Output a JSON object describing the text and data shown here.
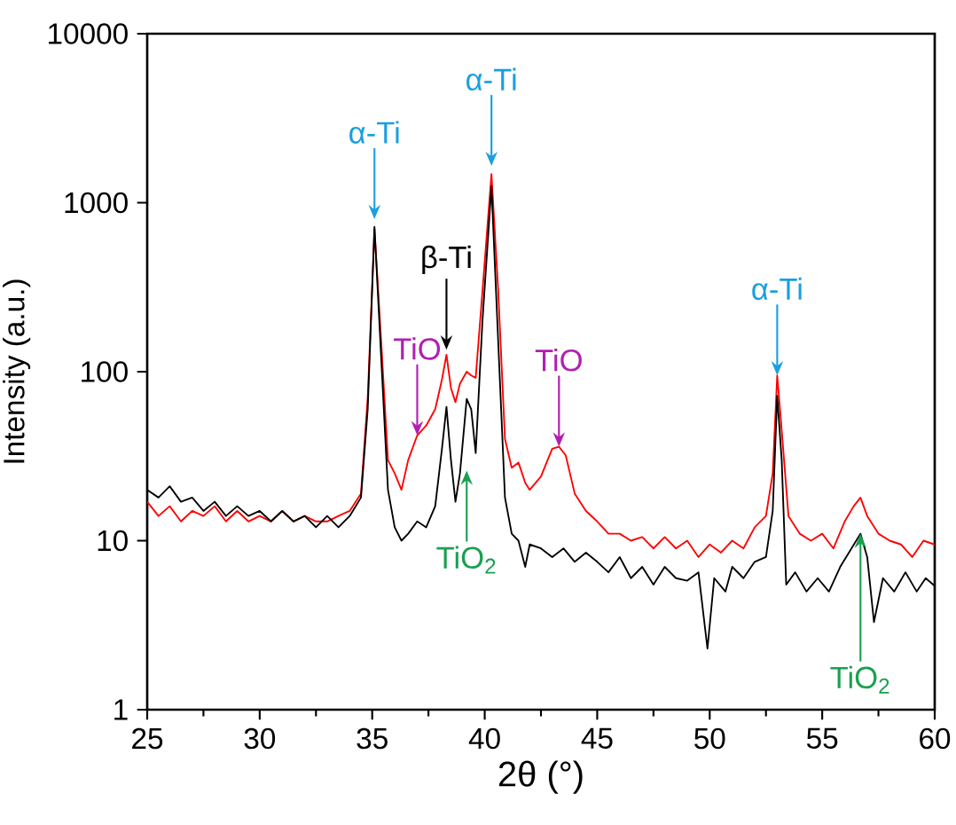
{
  "chart_data": {
    "type": "line",
    "xlabel": "2θ (°)",
    "ylabel": "Intensity (a.u.)",
    "log": "y",
    "xlim": [
      25,
      60
    ],
    "ylim": [
      1,
      10000
    ],
    "xticks": [
      25,
      30,
      35,
      40,
      45,
      50,
      55,
      60
    ],
    "yticks": [
      1,
      10,
      100,
      1000,
      10000
    ],
    "series": [
      {
        "color": "#ff0000",
        "x": [
          25,
          25.5,
          26,
          26.5,
          27,
          27.5,
          28,
          28.5,
          29,
          29.5,
          30,
          30.5,
          31,
          31.5,
          32,
          32.5,
          33,
          33.5,
          34,
          34.5,
          34.8,
          35.1,
          35.4,
          35.7,
          36,
          36.3,
          36.6,
          37,
          37.4,
          37.8,
          38.1,
          38.3,
          38.5,
          38.7,
          38.9,
          39.2,
          39.4,
          39.6,
          39.9,
          40.3,
          40.6,
          40.9,
          41.2,
          41.5,
          41.8,
          42,
          42.5,
          43,
          43.3,
          43.6,
          44,
          44.5,
          45,
          45.5,
          46,
          46.5,
          47,
          47.5,
          48,
          48.5,
          49,
          49.5,
          50,
          50.5,
          51,
          51.5,
          52,
          52.5,
          52.8,
          53.0,
          53.2,
          53.5,
          54,
          54.5,
          55,
          55.5,
          56,
          56.4,
          56.7,
          57,
          57.5,
          58,
          58.5,
          59,
          59.5,
          60
        ],
        "values": [
          17,
          14,
          16,
          13,
          15,
          14,
          16,
          13,
          15,
          13,
          14,
          13,
          15,
          13,
          14,
          13,
          13,
          14,
          15,
          19,
          70,
          700,
          150,
          30,
          25,
          20,
          30,
          42,
          48,
          60,
          90,
          126,
          80,
          66,
          85,
          100,
          95,
          92,
          300,
          1480,
          300,
          40,
          27,
          29,
          22,
          20,
          24,
          35,
          36,
          32,
          19,
          15,
          13,
          11,
          11,
          10,
          10.5,
          9,
          10.5,
          9,
          10,
          8,
          9.5,
          8.5,
          10,
          9,
          12,
          14,
          25,
          95,
          45,
          14,
          11,
          10,
          11,
          9,
          13,
          16,
          18,
          14,
          11,
          10,
          9.5,
          8,
          10,
          9.5
        ]
      },
      {
        "color": "#000000",
        "x": [
          25,
          25.5,
          26,
          26.5,
          27,
          27.5,
          28,
          28.5,
          29,
          29.5,
          30,
          30.5,
          31,
          31.5,
          32,
          32.5,
          33,
          33.5,
          34,
          34.5,
          34.8,
          35.1,
          35.4,
          35.7,
          36,
          36.3,
          36.6,
          37,
          37.4,
          37.8,
          38.1,
          38.3,
          38.5,
          38.7,
          38.9,
          39.2,
          39.4,
          39.6,
          39.9,
          40.3,
          40.6,
          40.9,
          41.2,
          41.5,
          41.8,
          42,
          42.5,
          43,
          43.5,
          44,
          44.5,
          45,
          45.5,
          46,
          46.5,
          47,
          47.5,
          48,
          48.5,
          49,
          49.5,
          49.9,
          50.2,
          50.7,
          51,
          51.5,
          52,
          52.5,
          52.8,
          53.0,
          53.2,
          53.4,
          53.8,
          54.3,
          54.8,
          55.3,
          55.8,
          56.3,
          56.7,
          57.0,
          57.3,
          57.7,
          58.2,
          58.7,
          59.2,
          59.6,
          60
        ],
        "values": [
          20,
          18,
          21,
          17,
          18,
          15,
          17,
          14,
          16,
          14,
          15,
          13,
          15,
          13,
          14,
          12,
          14,
          12,
          14,
          18,
          60,
          720,
          120,
          20,
          12,
          10,
          11,
          13,
          12,
          16,
          35,
          62,
          30,
          17,
          25,
          69,
          60,
          33,
          200,
          1250,
          150,
          18,
          11,
          10,
          7,
          9.5,
          9,
          8,
          9,
          7.5,
          8.5,
          7.5,
          6.5,
          8,
          6,
          7,
          5.5,
          7,
          6,
          5.8,
          6.5,
          2.3,
          6,
          5,
          7,
          6,
          7.5,
          8,
          15,
          72,
          30,
          5.5,
          6.5,
          5,
          6,
          5,
          7,
          9,
          11,
          8,
          3.3,
          6,
          5,
          6.5,
          5,
          6,
          5.4
        ]
      }
    ],
    "annotations": [
      {
        "text": "α-Ti",
        "x": 35.1,
        "y": 800
      },
      {
        "text": "α-Ti",
        "x": 40.3,
        "y": 1650
      },
      {
        "text": "β-Ti",
        "x": 38.3,
        "y": 135
      },
      {
        "text": "TiO",
        "x": 37,
        "y": 42
      },
      {
        "text": "TiO",
        "x": 43.3,
        "y": 36
      },
      {
        "text": "α-Ti",
        "x": 53.0,
        "y": 95
      },
      {
        "text": "TiO$_{2}$",
        "x": 39.2,
        "y": 26
      },
      {
        "text": "TiO$_{2}$",
        "x": 56.7,
        "y": 11
      }
    ]
  }
}
